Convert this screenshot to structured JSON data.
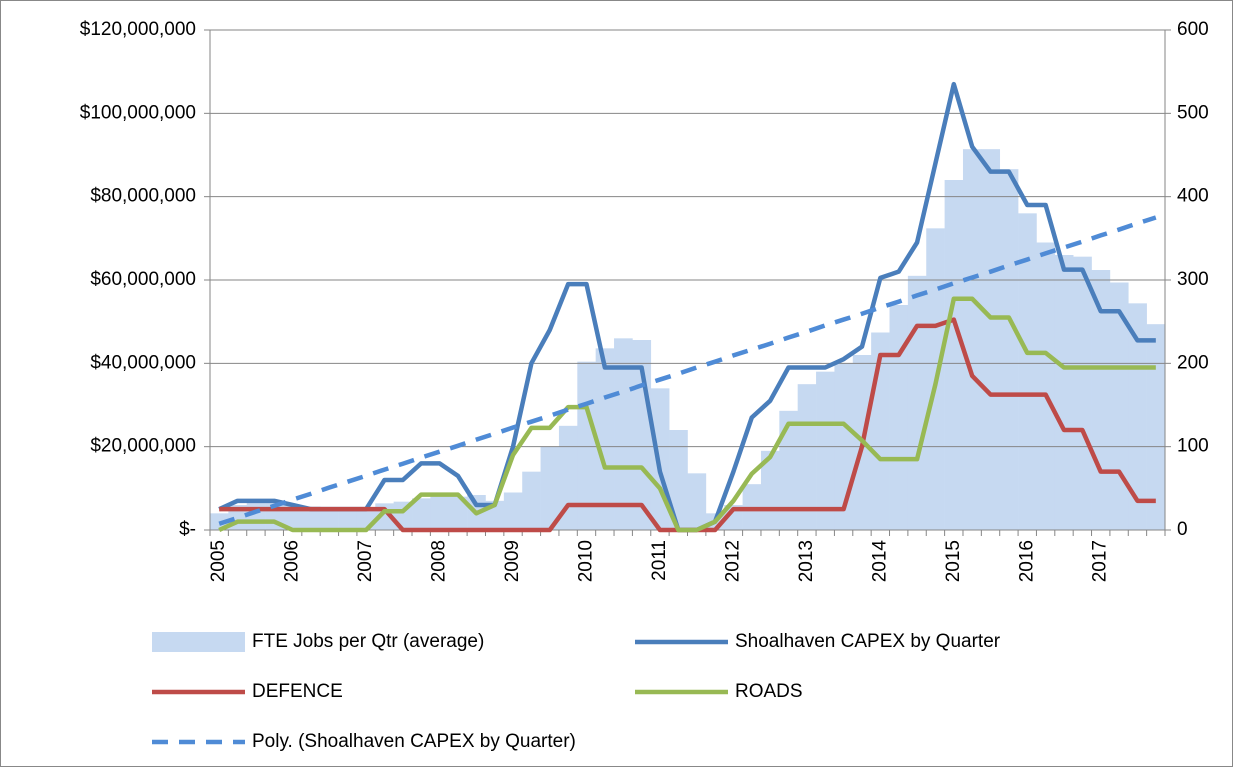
{
  "chart_data": {
    "type": "combo",
    "categories": [
      "2005",
      null,
      null,
      null,
      "2006",
      null,
      null,
      null,
      "2007",
      null,
      null,
      null,
      "2008",
      null,
      null,
      null,
      "2009",
      null,
      null,
      null,
      "2010",
      null,
      null,
      null,
      "2011",
      null,
      null,
      null,
      "2012",
      null,
      null,
      null,
      "2013",
      null,
      null,
      null,
      "2014",
      null,
      null,
      null,
      "2015",
      null,
      null,
      null,
      "2016",
      null,
      null,
      null,
      "2017",
      null,
      null,
      null
    ],
    "ylim": [
      0,
      120000000
    ],
    "yticks": [
      {
        "value": 0,
        "label": "$-"
      },
      {
        "value": 20000000,
        "label": "$20,000,000"
      },
      {
        "value": 40000000,
        "label": "$40,000,000"
      },
      {
        "value": 60000000,
        "label": "$60,000,000"
      },
      {
        "value": 80000000,
        "label": "$80,000,000"
      },
      {
        "value": 100000000,
        "label": "$100,000,000"
      },
      {
        "value": 120000000,
        "label": "$120,000,000"
      }
    ],
    "y2lim": [
      0,
      600
    ],
    "y2ticks": [
      0,
      100,
      200,
      300,
      400,
      500,
      600
    ],
    "grid": true,
    "legend": "bottom",
    "series": [
      {
        "name": "FTE Jobs per Qtr (average)",
        "type": "bar",
        "axis": "y2",
        "color": "#c6d9f1",
        "values": [
          20,
          30,
          35,
          33,
          30,
          28,
          27,
          27,
          27,
          32,
          34,
          38,
          40,
          40,
          42,
          35,
          45,
          70,
          100,
          125,
          202,
          218,
          230,
          228,
          170,
          120,
          68,
          20,
          30,
          55,
          95,
          143,
          175,
          190,
          200,
          210,
          237,
          270,
          305,
          362,
          420,
          457,
          457,
          433,
          380,
          345,
          330,
          328,
          312,
          297,
          272,
          247
        ]
      },
      {
        "name": "Shoalhaven CAPEX by Quarter",
        "type": "line",
        "color": "#4a7ebb",
        "values": [
          5000000,
          7000000,
          7000000,
          7000000,
          6000000,
          5000000,
          5000000,
          5000000,
          5000000,
          12000000,
          12000000,
          16000000,
          16000000,
          13000000,
          6000000,
          6000000,
          20000000,
          40000000,
          48000000,
          59000000,
          59000000,
          39000000,
          39000000,
          39000000,
          14000000,
          0,
          0,
          2000000,
          14000000,
          27000000,
          31000000,
          39000000,
          39000000,
          39000000,
          41000000,
          44000000,
          60500000,
          62000000,
          69000000,
          88000000,
          107000000,
          92000000,
          86000000,
          86000000,
          78000000,
          78000000,
          62500000,
          62500000,
          52500000,
          52500000,
          45500000,
          45500000
        ]
      },
      {
        "name": "DEFENCE",
        "type": "line",
        "color": "#be4b48",
        "values": [
          5000000,
          5000000,
          5000000,
          5000000,
          5000000,
          5000000,
          5000000,
          5000000,
          5000000,
          5000000,
          0,
          0,
          0,
          0,
          0,
          0,
          0,
          0,
          0,
          6000000,
          6000000,
          6000000,
          6000000,
          6000000,
          0,
          0,
          0,
          0,
          5000000,
          5000000,
          5000000,
          5000000,
          5000000,
          5000000,
          5000000,
          20000000,
          42000000,
          42000000,
          49000000,
          49000000,
          50500000,
          37000000,
          32500000,
          32500000,
          32500000,
          32500000,
          24000000,
          24000000,
          14000000,
          14000000,
          7000000,
          7000000
        ]
      },
      {
        "name": "ROADS",
        "type": "line",
        "color": "#98b954",
        "values": [
          0,
          2000000,
          2000000,
          2000000,
          0,
          0,
          0,
          0,
          0,
          4500000,
          4500000,
          8500000,
          8500000,
          8500000,
          4000000,
          6000000,
          18000000,
          24500000,
          24500000,
          29500000,
          29500000,
          15000000,
          15000000,
          15000000,
          10000000,
          0,
          0,
          2000000,
          7000000,
          13500000,
          17500000,
          25500000,
          25500000,
          25500000,
          25500000,
          21500000,
          17000000,
          17000000,
          17000000,
          35000000,
          55500000,
          55500000,
          51000000,
          51000000,
          42500000,
          42500000,
          39000000,
          39000000,
          39000000,
          39000000,
          39000000,
          39000000
        ]
      },
      {
        "name": "Poly. (Shoalhaven CAPEX by Quarter)",
        "type": "line",
        "line_style": "dashed",
        "color": "#4f8bd6",
        "values": [
          1500000,
          2900000,
          4400000,
          5800000,
          7300000,
          8700000,
          10200000,
          11600000,
          13000000,
          14500000,
          15900000,
          17400000,
          18800000,
          20200000,
          21700000,
          23100000,
          24600000,
          26000000,
          27400000,
          28900000,
          30300000,
          31800000,
          33200000,
          34700000,
          36100000,
          37500000,
          39000000,
          40400000,
          41900000,
          43300000,
          44700000,
          46200000,
          47600000,
          49100000,
          50500000,
          51900000,
          53400000,
          54800000,
          56300000,
          57700000,
          59200000,
          60600000,
          62000000,
          63500000,
          64900000,
          66400000,
          67800000,
          69200000,
          70700000,
          72100000,
          73600000,
          75000000
        ]
      }
    ]
  }
}
